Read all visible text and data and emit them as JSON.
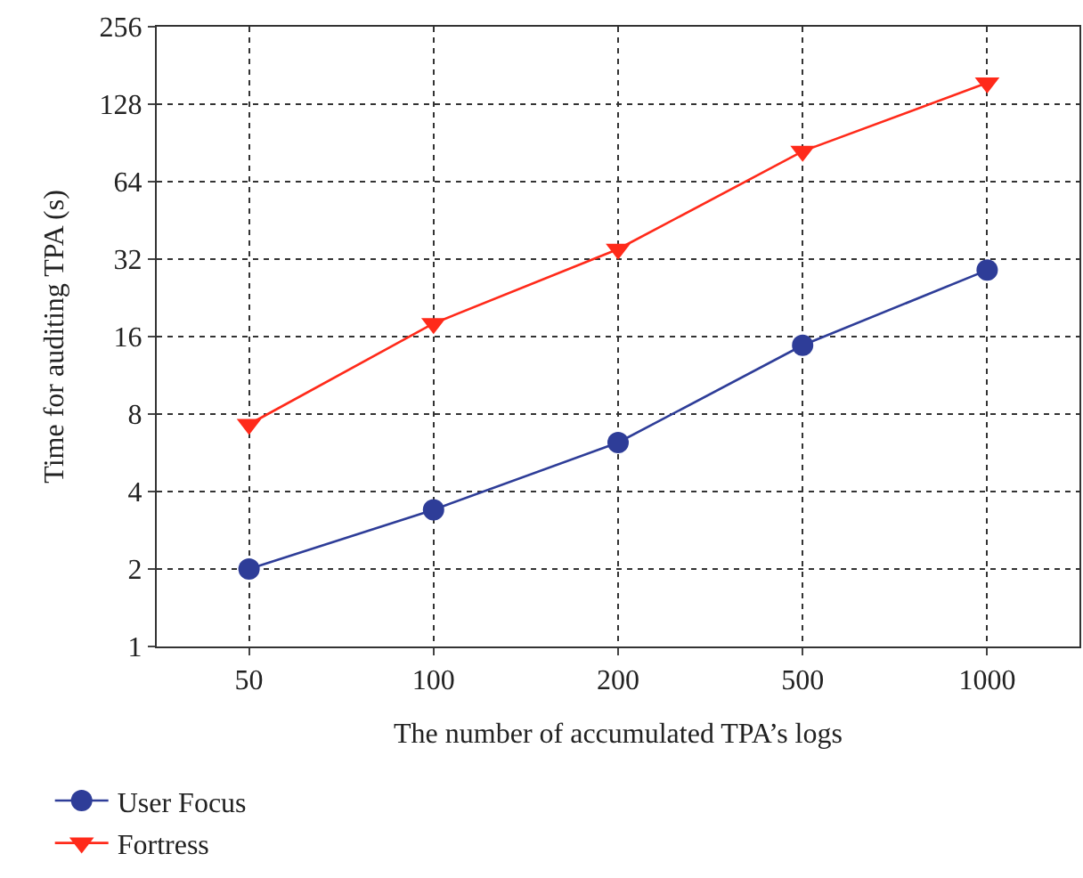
{
  "chart_data": {
    "type": "line",
    "xlabel": "The number of accumulated TPA’s logs",
    "ylabel": "Time for auditing TPA (s)",
    "categories": [
      "50",
      "100",
      "200",
      "500",
      "1000"
    ],
    "series": [
      {
        "name": "User Focus",
        "color": "#2e3d98",
        "marker": "circle",
        "values": [
          2,
          3.4,
          6.2,
          14.8,
          29
        ]
      },
      {
        "name": "Fortress",
        "color": "#ff2a1a",
        "marker": "triangle-down",
        "values": [
          7.3,
          18,
          35,
          84,
          155
        ]
      }
    ],
    "log": "y",
    "ylim": [
      1,
      256
    ],
    "yticks": [
      1,
      2,
      4,
      8,
      16,
      32,
      64,
      128,
      256
    ],
    "grid": true,
    "legend": "bottom left"
  }
}
